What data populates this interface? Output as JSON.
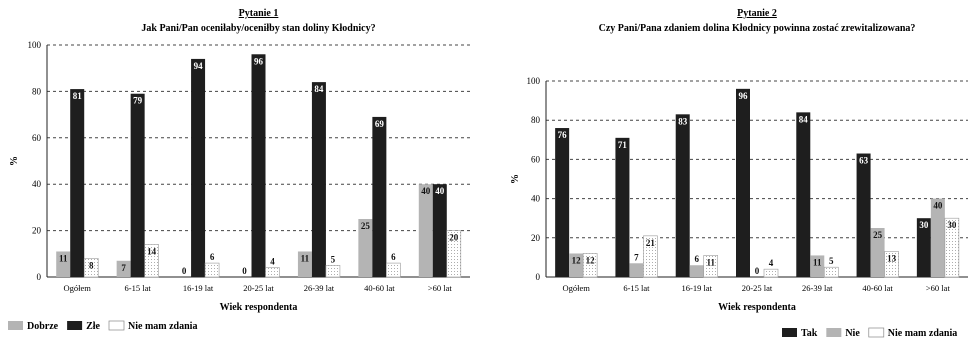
{
  "chart_data": [
    {
      "type": "bar",
      "title": "Pytanie 1",
      "subtitle": "Jak Pani/Pan oceniłaby/oceniłby stan doliny Kłodnicy?",
      "xlabel": "Wiek respondenta",
      "ylabel": "%",
      "ylim": [
        0,
        100
      ],
      "yticks": [
        0,
        20,
        40,
        60,
        80,
        100
      ],
      "grid": true,
      "legend_position": "bottom-left",
      "categories": [
        "Ogółem",
        "6-15 lat",
        "16-19 lat",
        "20-25 lat",
        "26-39 lat",
        "40-60 lat",
        ">60 lat"
      ],
      "series": [
        {
          "name": "Dobrze",
          "color": "#b4b4b4",
          "pattern": "solid",
          "values": [
            11,
            7,
            0,
            0,
            11,
            25,
            40
          ]
        },
        {
          "name": "Złe",
          "color": "#1e1e1e",
          "pattern": "solid",
          "values": [
            81,
            79,
            94,
            96,
            84,
            69,
            40
          ]
        },
        {
          "name": "Nie mam zdania",
          "color": "#ffffff",
          "pattern": "dotted",
          "values": [
            8,
            14,
            6,
            4,
            5,
            6,
            20
          ]
        }
      ]
    },
    {
      "type": "bar",
      "title": "Pytanie 2",
      "subtitle": "Czy Pani/Pana zdaniem dolina Kłodnicy powinna zostać zrewitalizowana?",
      "xlabel": "Wiek respondenta",
      "ylabel": "%",
      "ylim": [
        0,
        100
      ],
      "yticks": [
        0,
        20,
        40,
        60,
        80,
        100
      ],
      "grid": true,
      "legend_position": "bottom-right",
      "categories": [
        "Ogółem",
        "6-15 lat",
        "16-19 lat",
        "20-25 lat",
        "26-39 lat",
        "40-60 lat",
        ">60 lat"
      ],
      "series": [
        {
          "name": "Tak",
          "color": "#1e1e1e",
          "pattern": "solid",
          "values": [
            76,
            71,
            83,
            96,
            84,
            63,
            30
          ]
        },
        {
          "name": "Nie",
          "color": "#b4b4b4",
          "pattern": "solid",
          "values": [
            12,
            7,
            6,
            0,
            11,
            25,
            40
          ]
        },
        {
          "name": "Nie mam zdania",
          "color": "#ffffff",
          "pattern": "dotted",
          "values": [
            12,
            21,
            11,
            4,
            5,
            13,
            30
          ]
        }
      ]
    }
  ]
}
